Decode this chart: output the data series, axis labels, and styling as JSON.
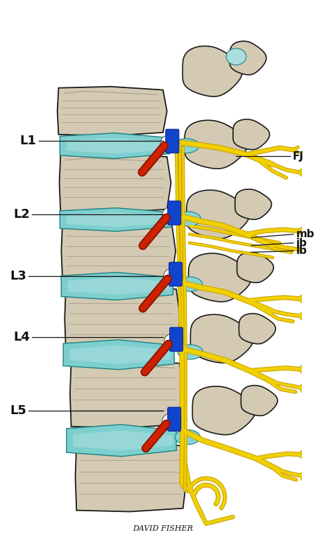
{
  "background_color": "#ffffff",
  "vertebra_body_color": "#d4c9b2",
  "vertebra_body_color2": "#c8bda0",
  "vertebra_outline": "#1a1a1a",
  "disc_color": "#7dcfcf",
  "disc_color2": "#aadede",
  "disc_outline": "#1a8080",
  "nerve_yellow": "#f0d000",
  "nerve_dark": "#c8a000",
  "artery_red": "#cc2200",
  "artery_dark": "#881100",
  "vein_blue": "#1144cc",
  "vein_dark": "#001188",
  "white_fill": "#ffffff",
  "facet_cyan": "#88d8d8",
  "label_color": "#111111",
  "signature_color": "#111111",
  "labels_left": [
    "L1",
    "L2",
    "L3",
    "L4",
    "L5"
  ],
  "labels_right": [
    "FJ",
    "mb",
    "ib",
    "lb"
  ],
  "signature": "DAVID FISHER",
  "fig_width": 4.54,
  "fig_height": 8.0
}
